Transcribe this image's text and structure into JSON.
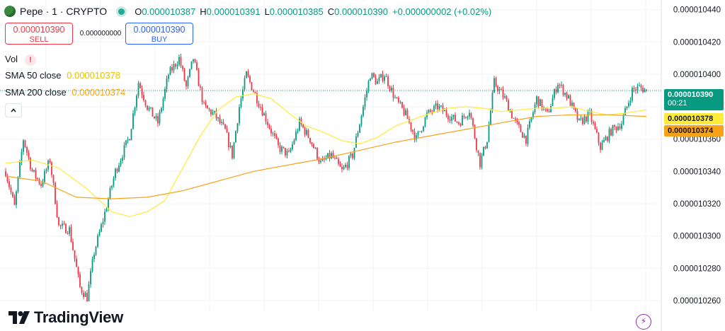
{
  "header": {
    "symbol": "Pepe · 1 · CRYPTO",
    "o_key": "O",
    "o_val": "0.000010387",
    "h_key": "H",
    "h_val": "0.000010391",
    "l_key": "L",
    "l_val": "0.000010385",
    "c_key": "C",
    "c_val": "0.000010390",
    "change": "+0.000000002 (+0.02%)"
  },
  "trade": {
    "sell_price": "0.000010390",
    "sell_label": "SELL",
    "spread": "0.000000000",
    "buy_price": "0.000010390",
    "buy_label": "BUY"
  },
  "indicators": {
    "vol_label": "Vol",
    "sma50_label": "SMA 50 close",
    "sma50_value": "0.000010378",
    "sma200_label": "SMA 200 close",
    "sma200_value": "0.000010374"
  },
  "price_tags": {
    "last": "0.000010390",
    "countdown": "00:21",
    "sma50": "0.000010378",
    "sma200": "0.000010374"
  },
  "brand": {
    "name": "TradingView"
  },
  "colors": {
    "up": "#089981",
    "down": "#f23645",
    "sma50": "#ffeb3b",
    "sma200": "#f7a21b",
    "last_line": "#089981"
  },
  "chart_data": {
    "type": "candlestick",
    "ylim": [
      1.02535e-05,
      1.0446e-05
    ],
    "yticks": [
      1.044e-05,
      1.042e-05,
      1.04e-05,
      1.038e-05,
      1.036e-05,
      1.034e-05,
      1.032e-05,
      1.03e-05,
      1.028e-05,
      1.026e-05
    ],
    "ytick_labels": [
      "0.000010440",
      "0.000010420",
      "0.000010400",
      "0.000010380",
      "0.000010360",
      "0.000010340",
      "0.000010320",
      "0.000010300",
      "0.000010280",
      "0.000010260"
    ],
    "grid": true,
    "last_price": 1.039e-05,
    "keypoints": [
      [
        0,
        1.034e-05
      ],
      [
        5,
        1.0318e-05
      ],
      [
        10,
        1.036e-05
      ],
      [
        15,
        1.034e-05
      ],
      [
        20,
        1.0332e-05
      ],
      [
        25,
        1.0347e-05
      ],
      [
        30,
        1.0306e-05
      ],
      [
        36,
        1.0304e-05
      ],
      [
        42,
        1.0268e-05
      ],
      [
        46,
        1.0262e-05
      ],
      [
        50,
        1.029e-05
      ],
      [
        55,
        1.031e-05
      ],
      [
        62,
        1.034e-05
      ],
      [
        70,
        1.0362e-05
      ],
      [
        75,
        1.0395e-05
      ],
      [
        80,
        1.038e-05
      ],
      [
        86,
        1.037e-05
      ],
      [
        92,
        1.04e-05
      ],
      [
        98,
        1.041e-05
      ],
      [
        102,
        1.0392e-05
      ],
      [
        106,
        1.041e-05
      ],
      [
        112,
        1.038e-05
      ],
      [
        118,
        1.0375e-05
      ],
      [
        124,
        1.0365e-05
      ],
      [
        128,
        1.035e-05
      ],
      [
        132,
        1.038e-05
      ],
      [
        136,
        1.04e-05
      ],
      [
        142,
        1.0385e-05
      ],
      [
        148,
        1.037e-05
      ],
      [
        154,
        1.0355e-05
      ],
      [
        160,
        1.035e-05
      ],
      [
        166,
        1.037e-05
      ],
      [
        172,
        1.036e-05
      ],
      [
        178,
        1.0345e-05
      ],
      [
        184,
        1.035e-05
      ],
      [
        190,
        1.034e-05
      ],
      [
        196,
        1.035e-05
      ],
      [
        202,
        1.038e-05
      ],
      [
        206,
        1.04e-05
      ],
      [
        210,
        1.0395e-05
      ],
      [
        214,
        1.04e-05
      ],
      [
        220,
        1.0385e-05
      ],
      [
        226,
        1.0375e-05
      ],
      [
        232,
        1.036e-05
      ],
      [
        238,
        1.0375e-05
      ],
      [
        244,
        1.038e-05
      ],
      [
        250,
        1.0375e-05
      ],
      [
        256,
        1.037e-05
      ],
      [
        262,
        1.0378e-05
      ],
      [
        268,
        1.0345e-05
      ],
      [
        272,
        1.036e-05
      ],
      [
        276,
        1.0395e-05
      ],
      [
        282,
        1.0385e-05
      ],
      [
        288,
        1.037e-05
      ],
      [
        294,
        1.036e-05
      ],
      [
        300,
        1.0385e-05
      ],
      [
        306,
        1.0375e-05
      ],
      [
        312,
        1.0395e-05
      ],
      [
        318,
        1.0385e-05
      ],
      [
        324,
        1.037e-05
      ],
      [
        330,
        1.0375e-05
      ],
      [
        336,
        1.0355e-05
      ],
      [
        342,
        1.0365e-05
      ],
      [
        348,
        1.037e-05
      ],
      [
        354,
        1.039e-05
      ],
      [
        358,
        1.0392e-05
      ],
      [
        362,
        1.039e-05
      ]
    ],
    "sma50": [
      [
        0,
        1.0345e-05
      ],
      [
        15,
        1.0347e-05
      ],
      [
        30,
        1.0342e-05
      ],
      [
        45,
        1.033e-05
      ],
      [
        60,
        1.0315e-05
      ],
      [
        70,
        1.0312e-05
      ],
      [
        80,
        1.0315e-05
      ],
      [
        90,
        1.0322e-05
      ],
      [
        100,
        1.0342e-05
      ],
      [
        110,
        1.0362e-05
      ],
      [
        120,
        1.0378e-05
      ],
      [
        130,
        1.0386e-05
      ],
      [
        140,
        1.0388e-05
      ],
      [
        150,
        1.0385e-05
      ],
      [
        160,
        1.0376e-05
      ],
      [
        170,
        1.0368e-05
      ],
      [
        180,
        1.0364e-05
      ],
      [
        190,
        1.0359e-05
      ],
      [
        200,
        1.0357e-05
      ],
      [
        210,
        1.0361e-05
      ],
      [
        220,
        1.0368e-05
      ],
      [
        230,
        1.0372e-05
      ],
      [
        240,
        1.0376e-05
      ],
      [
        250,
        1.0379e-05
      ],
      [
        260,
        1.038e-05
      ],
      [
        270,
        1.0379e-05
      ],
      [
        280,
        1.0377e-05
      ],
      [
        290,
        1.0378e-05
      ],
      [
        300,
        1.0379e-05
      ],
      [
        310,
        1.0379e-05
      ],
      [
        320,
        1.038e-05
      ],
      [
        330,
        1.0377e-05
      ],
      [
        340,
        1.0375e-05
      ],
      [
        350,
        1.0376e-05
      ],
      [
        362,
        1.0378e-05
      ]
    ],
    "sma200": [
      [
        0,
        1.0337e-05
      ],
      [
        20,
        1.0334e-05
      ],
      [
        40,
        1.0324e-05
      ],
      [
        60,
        1.0323e-05
      ],
      [
        80,
        1.0324e-05
      ],
      [
        100,
        1.0328e-05
      ],
      [
        120,
        1.0334e-05
      ],
      [
        140,
        1.034e-05
      ],
      [
        160,
        1.0344e-05
      ],
      [
        180,
        1.0348e-05
      ],
      [
        200,
        1.0353e-05
      ],
      [
        220,
        1.0358e-05
      ],
      [
        240,
        1.0362e-05
      ],
      [
        260,
        1.0366e-05
      ],
      [
        280,
        1.037e-05
      ],
      [
        300,
        1.0374e-05
      ],
      [
        320,
        1.0375e-05
      ],
      [
        340,
        1.0375e-05
      ],
      [
        362,
        1.0374e-05
      ]
    ],
    "candle_count": 363
  }
}
